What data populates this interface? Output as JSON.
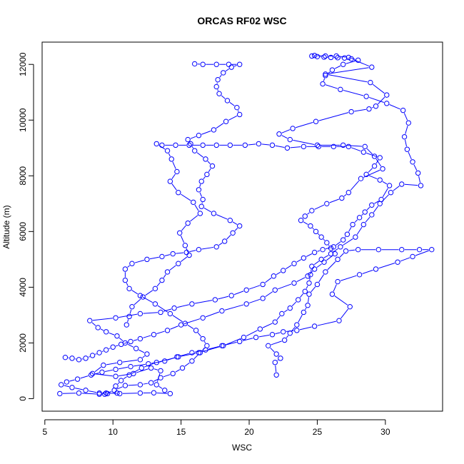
{
  "chart_data": {
    "type": "line",
    "title": "ORCAS RF02 WSC",
    "xlabel": "WSC",
    "ylabel": "Altitude (m)",
    "xlim": [
      4.8,
      34.2
    ],
    "ylim": [
      -450,
      12800
    ],
    "xticks": [
      5,
      10,
      15,
      20,
      25,
      30
    ],
    "yticks": [
      0,
      2000,
      4000,
      6000,
      8000,
      10000,
      12000
    ],
    "grid": false,
    "color": "#0000ff",
    "marker": "open-circle",
    "series": [
      {
        "values": [
          [
            6.1,
            180
          ],
          [
            7.5,
            200
          ],
          [
            9.0,
            160
          ],
          [
            9.5,
            200
          ],
          [
            10.5,
            180
          ],
          [
            12.0,
            200
          ],
          [
            13.0,
            210
          ],
          [
            14.2,
            180
          ],
          [
            13.8,
            300
          ],
          [
            13.2,
            500
          ],
          [
            13.5,
            1000
          ],
          [
            12.8,
            1100
          ],
          [
            11.5,
            900
          ],
          [
            10.2,
            800
          ],
          [
            8.5,
            900
          ],
          [
            9.3,
            1200
          ],
          [
            10.5,
            1300
          ],
          [
            12.0,
            1400
          ],
          [
            12.5,
            1600
          ],
          [
            11.7,
            1800
          ],
          [
            10.9,
            2000
          ],
          [
            10.3,
            2250
          ],
          [
            9.5,
            2400
          ],
          [
            8.9,
            2550
          ],
          [
            8.3,
            2800
          ],
          [
            10.2,
            2900
          ],
          [
            12.0,
            3050
          ],
          [
            13.5,
            3100
          ],
          [
            14.5,
            3250
          ],
          [
            15.8,
            3400
          ],
          [
            17.5,
            3550
          ],
          [
            18.7,
            3700
          ],
          [
            19.8,
            3900
          ],
          [
            21.0,
            4100
          ],
          [
            21.8,
            4400
          ],
          [
            22.5,
            4600
          ],
          [
            23.3,
            4850
          ],
          [
            24.0,
            5050
          ],
          [
            24.8,
            5250
          ],
          [
            25.4,
            5350
          ],
          [
            26.2,
            5450
          ],
          [
            26.9,
            5700
          ],
          [
            27.2,
            5900
          ],
          [
            27.6,
            6250
          ],
          [
            28.1,
            6500
          ],
          [
            28.5,
            6700
          ],
          [
            29.0,
            6950
          ],
          [
            29.7,
            7150
          ],
          [
            30.3,
            7650
          ],
          [
            29.6,
            7850
          ],
          [
            28.6,
            8050
          ],
          [
            29.2,
            8350
          ],
          [
            29.6,
            8650
          ],
          [
            28.4,
            8850
          ],
          [
            27.3,
            9050
          ],
          [
            26.2,
            9050
          ],
          [
            25.1,
            9050
          ],
          [
            24.0,
            9050
          ],
          [
            22.8,
            9000
          ],
          [
            21.7,
            9100
          ],
          [
            20.7,
            9150
          ],
          [
            19.7,
            9100
          ],
          [
            18.6,
            9100
          ],
          [
            17.6,
            9100
          ],
          [
            16.6,
            9100
          ],
          [
            15.6,
            9100
          ],
          [
            14.6,
            9100
          ],
          [
            13.6,
            9100
          ],
          [
            13.2,
            9150
          ],
          [
            14.0,
            8900
          ],
          [
            14.3,
            8600
          ],
          [
            14.7,
            8150
          ],
          [
            14.2,
            7800
          ],
          [
            14.8,
            7400
          ],
          [
            15.9,
            7050
          ],
          [
            16.4,
            6650
          ],
          [
            15.5,
            6300
          ],
          [
            14.9,
            5950
          ],
          [
            15.3,
            5500
          ],
          [
            15.6,
            5150
          ],
          [
            14.8,
            4850
          ],
          [
            14.0,
            4550
          ],
          [
            13.6,
            4250
          ],
          [
            13.1,
            3950
          ],
          [
            12.2,
            3650
          ],
          [
            11.4,
            3300
          ],
          [
            11.2,
            2950
          ],
          [
            11.0,
            2650
          ]
        ]
      },
      {
        "values": [
          [
            22.0,
            850
          ],
          [
            21.9,
            1300
          ],
          [
            22.3,
            1450
          ],
          [
            22.0,
            1600
          ],
          [
            21.4,
            1900
          ],
          [
            22.6,
            2100
          ],
          [
            23.0,
            2350
          ],
          [
            23.5,
            2650
          ],
          [
            24.0,
            3100
          ],
          [
            24.3,
            3350
          ],
          [
            24.4,
            3750
          ],
          [
            25.0,
            4100
          ],
          [
            25.6,
            4550
          ],
          [
            26.5,
            5000
          ],
          [
            27.1,
            5300
          ],
          [
            28.0,
            5350
          ],
          [
            29.5,
            5350
          ],
          [
            31.2,
            5350
          ],
          [
            32.5,
            5350
          ],
          [
            33.4,
            5350
          ],
          [
            32.0,
            5100
          ],
          [
            30.9,
            4900
          ],
          [
            29.3,
            4650
          ],
          [
            28.1,
            4450
          ],
          [
            26.5,
            4200
          ],
          [
            26.1,
            3750
          ],
          [
            27.4,
            3300
          ],
          [
            26.6,
            2800
          ],
          [
            24.8,
            2600
          ],
          [
            23.5,
            2450
          ],
          [
            22.5,
            2400
          ],
          [
            21.7,
            2300
          ],
          [
            20.5,
            2200
          ],
          [
            19.3,
            2050
          ],
          [
            18.0,
            1900
          ],
          [
            16.8,
            1750
          ],
          [
            15.8,
            1650
          ],
          [
            14.7,
            1500
          ],
          [
            13.8,
            1350
          ],
          [
            12.6,
            1250
          ],
          [
            11.3,
            1150
          ],
          [
            10.2,
            1050
          ],
          [
            9.2,
            950
          ],
          [
            8.4,
            850
          ],
          [
            7.4,
            700
          ],
          [
            6.6,
            600
          ],
          [
            6.2,
            500
          ],
          [
            7.0,
            400
          ],
          [
            8.0,
            300
          ],
          [
            9.0,
            200
          ],
          [
            9.6,
            180
          ]
        ]
      },
      {
        "values": [
          [
            10.3,
            200
          ],
          [
            10.2,
            450
          ],
          [
            10.6,
            650
          ],
          [
            11.2,
            850
          ],
          [
            12.1,
            1100
          ],
          [
            13.2,
            1300
          ],
          [
            14.8,
            1500
          ],
          [
            16.3,
            1650
          ],
          [
            18.1,
            1900
          ],
          [
            19.6,
            2200
          ],
          [
            20.8,
            2500
          ],
          [
            21.9,
            2750
          ],
          [
            22.4,
            3050
          ],
          [
            23.0,
            3250
          ],
          [
            23.6,
            3550
          ],
          [
            24.1,
            3850
          ],
          [
            24.4,
            4150
          ],
          [
            24.5,
            4450
          ],
          [
            24.6,
            4750
          ],
          [
            25.3,
            5000
          ],
          [
            26.0,
            5200
          ],
          [
            26.7,
            5450
          ],
          [
            27.8,
            5800
          ],
          [
            28.4,
            6250
          ],
          [
            29.0,
            6600
          ],
          [
            29.6,
            7000
          ],
          [
            30.4,
            7400
          ],
          [
            31.2,
            7700
          ],
          [
            32.6,
            7650
          ],
          [
            32.4,
            8100
          ],
          [
            32.0,
            8500
          ],
          [
            31.6,
            8950
          ],
          [
            31.4,
            9400
          ],
          [
            31.7,
            9900
          ],
          [
            31.3,
            10350
          ],
          [
            30.1,
            10600
          ],
          [
            28.6,
            10850
          ],
          [
            26.7,
            11100
          ],
          [
            25.4,
            11300
          ],
          [
            25.6,
            11600
          ],
          [
            26.1,
            11800
          ],
          [
            26.9,
            12000
          ],
          [
            28.0,
            12150
          ],
          [
            27.3,
            12250
          ],
          [
            26.4,
            12300
          ],
          [
            25.6,
            12300
          ],
          [
            24.8,
            12320
          ]
        ]
      },
      {
        "values": [
          [
            24.6,
            12300
          ],
          [
            25.0,
            12280
          ],
          [
            25.5,
            12260
          ],
          [
            26.0,
            12250
          ],
          [
            26.5,
            12240
          ],
          [
            27.0,
            12230
          ],
          [
            27.5,
            12200
          ],
          [
            29.0,
            11900
          ],
          [
            25.6,
            11650
          ],
          [
            28.9,
            11350
          ],
          [
            30.1,
            10900
          ],
          [
            29.3,
            10500
          ],
          [
            28.8,
            10400
          ],
          [
            27.5,
            10300
          ],
          [
            24.9,
            9950
          ],
          [
            23.2,
            9700
          ],
          [
            22.2,
            9500
          ],
          [
            23.0,
            9300
          ],
          [
            25.0,
            9100
          ],
          [
            26.9,
            9100
          ],
          [
            28.5,
            9050
          ],
          [
            29.2,
            8700
          ],
          [
            29.8,
            8250
          ],
          [
            28.2,
            7900
          ],
          [
            27.3,
            7400
          ],
          [
            26.8,
            7200
          ],
          [
            25.7,
            7000
          ],
          [
            24.6,
            6750
          ],
          [
            24.1,
            6550
          ],
          [
            23.8,
            6400
          ],
          [
            24.5,
            6200
          ],
          [
            24.9,
            6000
          ],
          [
            25.3,
            5800
          ],
          [
            25.7,
            5600
          ],
          [
            26.0,
            5400
          ],
          [
            26.3,
            5200
          ],
          [
            25.5,
            4900
          ],
          [
            24.8,
            4650
          ],
          [
            24.3,
            4400
          ],
          [
            23.3,
            4150
          ],
          [
            21.9,
            3900
          ],
          [
            21.0,
            3600
          ],
          [
            19.8,
            3400
          ],
          [
            18.0,
            3150
          ],
          [
            16.6,
            2900
          ],
          [
            15.0,
            2650
          ],
          [
            14.0,
            2450
          ],
          [
            13.0,
            2300
          ],
          [
            12.0,
            2150
          ],
          [
            11.3,
            2050
          ],
          [
            10.6,
            1950
          ],
          [
            10.0,
            1850
          ],
          [
            9.5,
            1750
          ],
          [
            9.0,
            1650
          ],
          [
            8.5,
            1550
          ],
          [
            8.0,
            1450
          ],
          [
            7.5,
            1400
          ],
          [
            7.0,
            1450
          ],
          [
            6.5,
            1480
          ]
        ]
      },
      {
        "values": [
          [
            9.4,
            160
          ],
          [
            10.1,
            300
          ],
          [
            10.9,
            470
          ],
          [
            12.0,
            500
          ],
          [
            12.8,
            570
          ],
          [
            13.5,
            750
          ],
          [
            14.4,
            900
          ],
          [
            15.1,
            1100
          ],
          [
            15.8,
            1350
          ],
          [
            16.4,
            1650
          ],
          [
            16.9,
            1900
          ],
          [
            16.6,
            2150
          ],
          [
            16.1,
            2450
          ],
          [
            15.3,
            2700
          ],
          [
            14.2,
            3050
          ],
          [
            13.1,
            3400
          ],
          [
            12.0,
            3700
          ],
          [
            11.2,
            3950
          ],
          [
            10.9,
            4250
          ],
          [
            10.9,
            4650
          ],
          [
            11.4,
            4850
          ],
          [
            12.5,
            5000
          ],
          [
            13.6,
            5100
          ],
          [
            14.4,
            5200
          ],
          [
            15.4,
            5250
          ],
          [
            16.3,
            5350
          ],
          [
            17.6,
            5450
          ],
          [
            18.2,
            5650
          ],
          [
            18.8,
            5950
          ],
          [
            19.3,
            6200
          ],
          [
            18.6,
            6400
          ],
          [
            17.4,
            6650
          ],
          [
            16.5,
            6900
          ],
          [
            16.6,
            7150
          ],
          [
            16.3,
            7500
          ],
          [
            16.5,
            7800
          ],
          [
            16.9,
            8050
          ],
          [
            17.3,
            8350
          ],
          [
            16.8,
            8600
          ],
          [
            16.0,
            8900
          ],
          [
            15.7,
            9150
          ],
          [
            15.5,
            9300
          ],
          [
            16.3,
            9450
          ],
          [
            17.4,
            9650
          ],
          [
            18.3,
            9950
          ],
          [
            19.3,
            10200
          ],
          [
            19.1,
            10450
          ],
          [
            18.4,
            10700
          ],
          [
            17.8,
            10950
          ],
          [
            17.6,
            11200
          ],
          [
            17.7,
            11450
          ],
          [
            18.1,
            11700
          ],
          [
            18.7,
            11900
          ],
          [
            19.3,
            12000
          ],
          [
            18.5,
            12000
          ],
          [
            17.6,
            12000
          ],
          [
            16.6,
            12000
          ],
          [
            16.0,
            12020
          ]
        ]
      }
    ]
  }
}
